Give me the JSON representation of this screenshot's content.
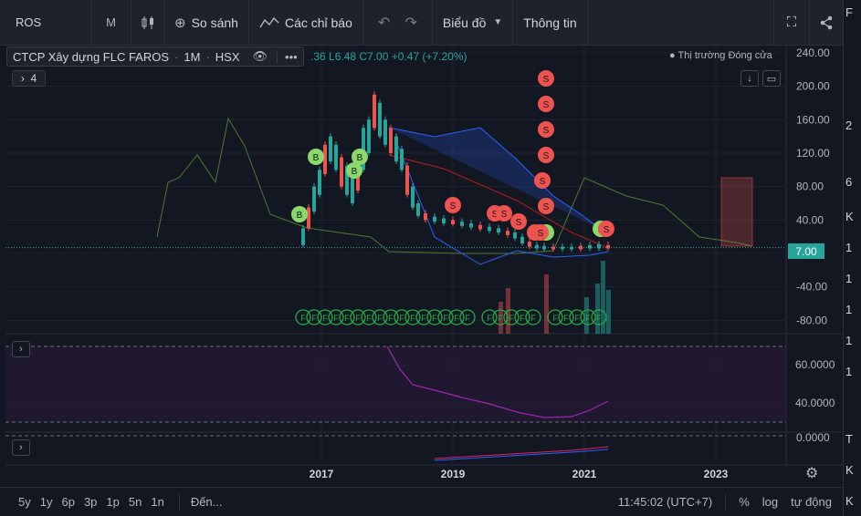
{
  "toolbar": {
    "symbol": "ROS",
    "interval": "M",
    "compare_label": "So sánh",
    "indicators_label": "Các chỉ báo",
    "chart_type_label": "Biểu đồ",
    "info_label": "Thông tin"
  },
  "legend": {
    "title": "CTCP Xây dựng FLC FAROS",
    "interval": "1M",
    "exchange": "HSX",
    "ohlc_text": ".36  L6.48  C7.00  +0.47 (+7.20%)",
    "indicator_count": "4",
    "market_status": "Thị trường Đóng cửa"
  },
  "price_axis": {
    "labels": [
      "240.00",
      "200.00",
      "160.00",
      "120.00",
      "80.00",
      "40.00",
      "0.00",
      "-40.00",
      "-80.00"
    ],
    "last_price": "7.00"
  },
  "osc_axis": {
    "labels": [
      "60.0000",
      "40.0000"
    ],
    "lower_label": "0.0000"
  },
  "time_axis": {
    "labels": [
      "2017",
      "2019",
      "2021",
      "2023"
    ]
  },
  "markers": {
    "buy": "B",
    "sell": "S",
    "signal": "F"
  },
  "colors": {
    "up": "#26a69a",
    "down": "#ef5350",
    "buy_marker": "#8cd96b",
    "sell_marker": "#ef5350",
    "background": "#131722"
  },
  "icons": {
    "add": "plus-circle-icon",
    "indicators": "wave-icon",
    "candles": "candlestick-icon",
    "fullscreen": "fullscreen-icon",
    "share": "share-icon",
    "eye": "eye-icon",
    "settings": "gear-icon",
    "undo": "undo-icon",
    "redo": "redo-icon"
  },
  "bottom_bar": {
    "ranges": [
      "5y",
      "1y",
      "6p",
      "3p",
      "1p",
      "5n",
      "1n"
    ],
    "goto_label": "Đến...",
    "clock": "11:45:02 (UTC+7)",
    "percent_label": "%",
    "log_label": "log",
    "auto_label": "tự động"
  },
  "right_strip": {
    "chars": [
      "F",
      "2",
      "6",
      "K",
      "1",
      "1",
      "1",
      "1",
      "1",
      "T",
      "K",
      "K"
    ]
  }
}
